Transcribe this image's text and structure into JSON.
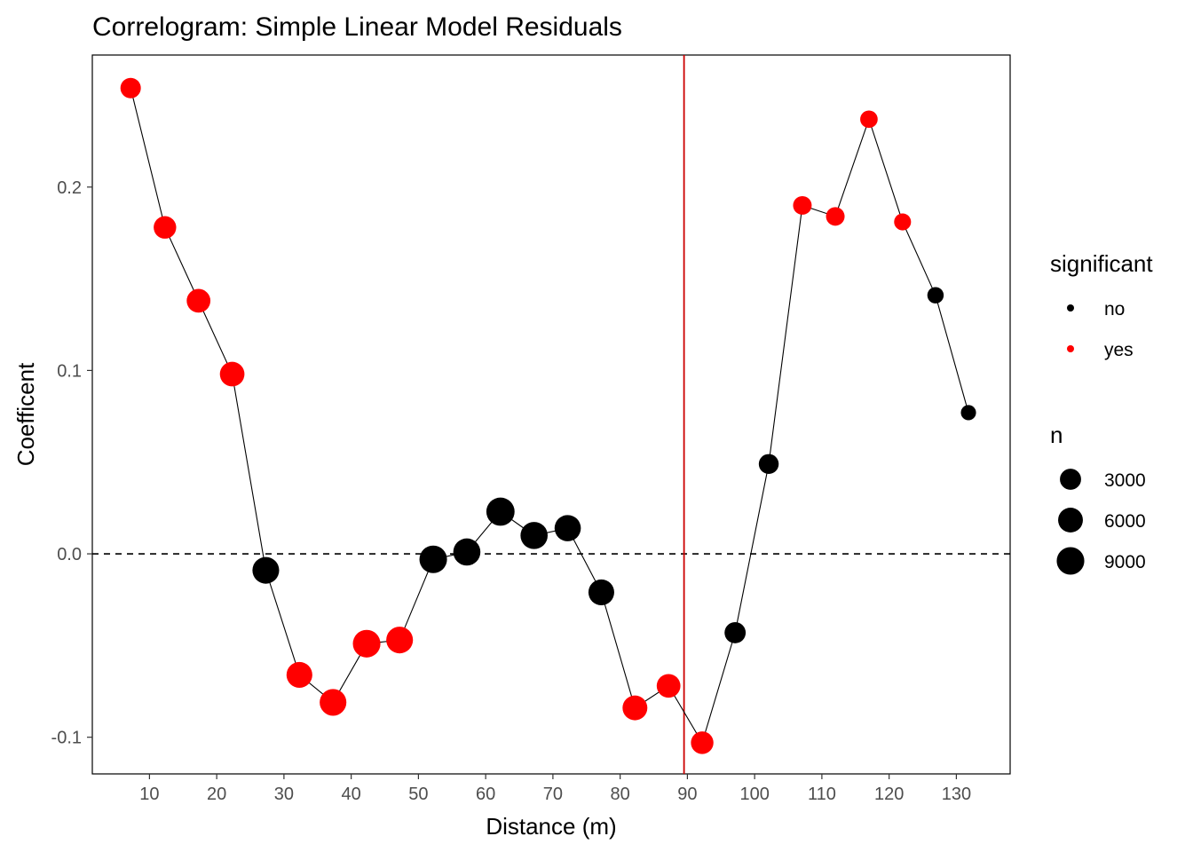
{
  "chart_data": {
    "type": "line",
    "title": "Correlogram: Simple Linear Model Residuals",
    "xlabel": "Distance (m)",
    "ylabel": "Coefficent",
    "xlim": [
      1.5,
      138
    ],
    "ylim": [
      -0.12,
      0.272
    ],
    "xticks": [
      10,
      20,
      30,
      40,
      50,
      60,
      70,
      80,
      90,
      100,
      110,
      120,
      130
    ],
    "yticks": [
      -0.1,
      0.0,
      0.1,
      0.2
    ],
    "ytick_labels": [
      "-0.1",
      "0.0",
      "0.1",
      "0.2"
    ],
    "reference_lines": {
      "horizontal_dashed_y": 0.0,
      "vertical_x": 89.5,
      "vertical_color": "#cc0000"
    },
    "colors": {
      "no": "#000000",
      "yes": "#ff0000"
    },
    "points": [
      {
        "x": 7.2,
        "y": 0.254,
        "significant": "yes",
        "n": 2500
      },
      {
        "x": 12.3,
        "y": 0.178,
        "significant": "yes",
        "n": 4000
      },
      {
        "x": 17.3,
        "y": 0.138,
        "significant": "yes",
        "n": 5000
      },
      {
        "x": 22.3,
        "y": 0.098,
        "significant": "yes",
        "n": 5800
      },
      {
        "x": 27.3,
        "y": -0.009,
        "significant": "no",
        "n": 8000
      },
      {
        "x": 32.3,
        "y": -0.066,
        "significant": "yes",
        "n": 7000
      },
      {
        "x": 37.3,
        "y": -0.081,
        "significant": "yes",
        "n": 8000
      },
      {
        "x": 42.3,
        "y": -0.049,
        "significant": "yes",
        "n": 9000
      },
      {
        "x": 47.2,
        "y": -0.047,
        "significant": "yes",
        "n": 8000
      },
      {
        "x": 52.2,
        "y": -0.003,
        "significant": "no",
        "n": 9000
      },
      {
        "x": 57.2,
        "y": 0.001,
        "significant": "no",
        "n": 8500
      },
      {
        "x": 62.2,
        "y": 0.023,
        "significant": "no",
        "n": 9800
      },
      {
        "x": 67.2,
        "y": 0.01,
        "significant": "no",
        "n": 8500
      },
      {
        "x": 72.2,
        "y": 0.014,
        "significant": "no",
        "n": 7500
      },
      {
        "x": 77.2,
        "y": -0.021,
        "significant": "no",
        "n": 7000
      },
      {
        "x": 82.2,
        "y": -0.084,
        "significant": "yes",
        "n": 6000
      },
      {
        "x": 87.2,
        "y": -0.072,
        "significant": "yes",
        "n": 5000
      },
      {
        "x": 92.2,
        "y": -0.103,
        "significant": "yes",
        "n": 4000
      },
      {
        "x": 97.1,
        "y": -0.043,
        "significant": "no",
        "n": 3000
      },
      {
        "x": 102.1,
        "y": 0.049,
        "significant": "no",
        "n": 2200
      },
      {
        "x": 107.1,
        "y": 0.19,
        "significant": "yes",
        "n": 1500
      },
      {
        "x": 112.0,
        "y": 0.184,
        "significant": "yes",
        "n": 1500
      },
      {
        "x": 117.0,
        "y": 0.237,
        "significant": "yes",
        "n": 1000
      },
      {
        "x": 122.0,
        "y": 0.181,
        "significant": "yes",
        "n": 800
      },
      {
        "x": 126.9,
        "y": 0.141,
        "significant": "no",
        "n": 600
      },
      {
        "x": 131.8,
        "y": 0.077,
        "significant": "no",
        "n": 300
      }
    ],
    "legend": {
      "placement": "right",
      "color_title": "significant",
      "color_entries": [
        {
          "label": "no",
          "color": "#000000"
        },
        {
          "label": "yes",
          "color": "#ff0000"
        }
      ],
      "size_title": "n",
      "size_entries": [
        {
          "label": "3000",
          "n": 3000
        },
        {
          "label": "6000",
          "n": 6000
        },
        {
          "label": "9000",
          "n": 9000
        }
      ]
    },
    "grid": false
  }
}
